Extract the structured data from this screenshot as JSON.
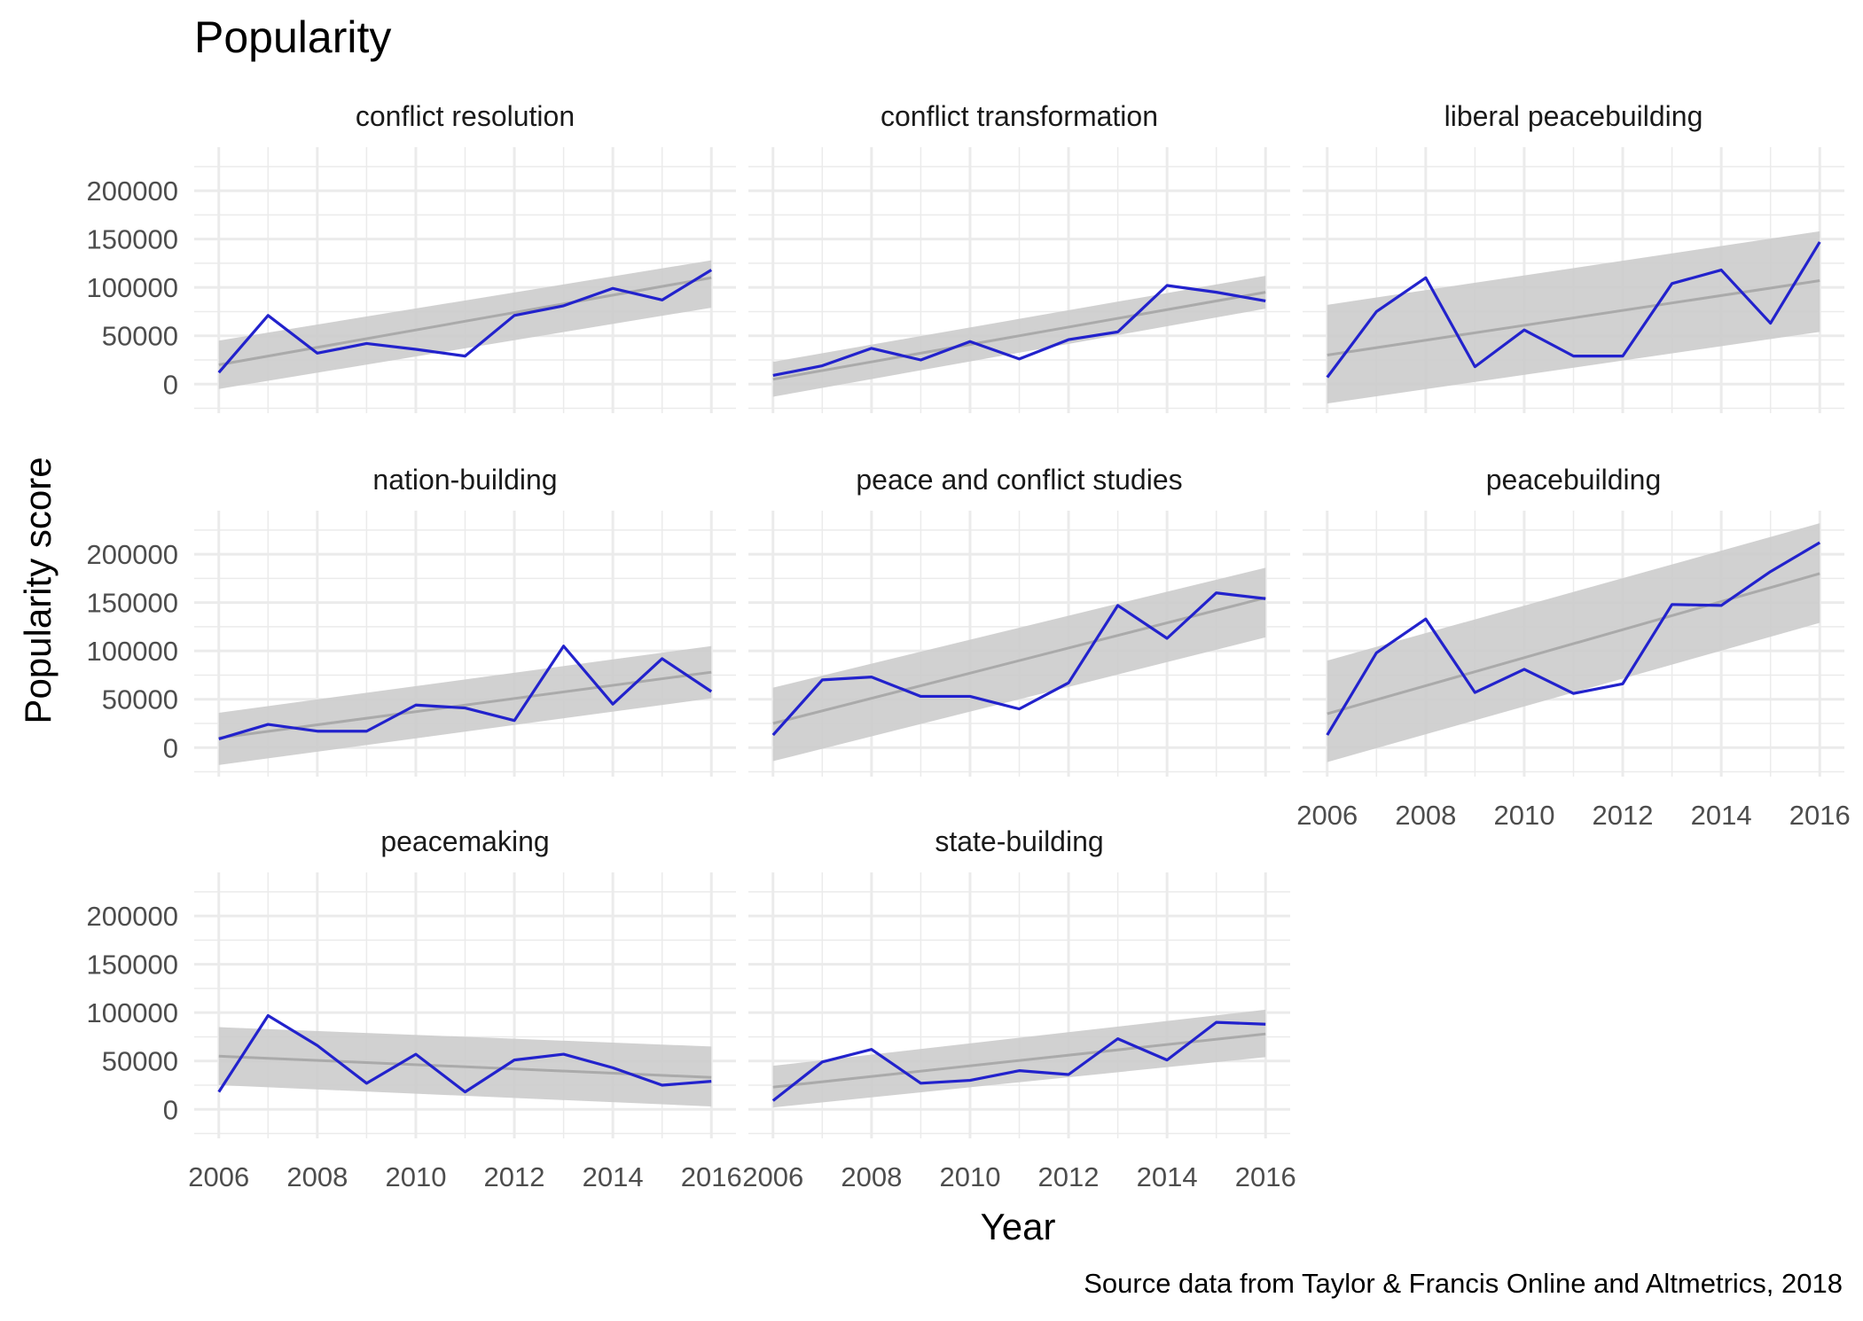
{
  "chart_data": {
    "type": "line",
    "title": "Popularity",
    "xlabel": "Year",
    "ylabel": "Popularity score",
    "caption": "Source data from Taylor & Francis Online and Altmetrics, 2018",
    "x": [
      2006,
      2007,
      2008,
      2009,
      2010,
      2011,
      2012,
      2013,
      2014,
      2015,
      2016
    ],
    "xlim": [
      2005.5,
      2016.5
    ],
    "ylim": [
      -30000,
      245000
    ],
    "x_breaks": [
      2006,
      2008,
      2010,
      2012,
      2014,
      2016
    ],
    "y_breaks": [
      0,
      50000,
      100000,
      150000,
      200000
    ],
    "grid": true,
    "layout": {
      "rows": 3,
      "cols": 3
    },
    "colors": {
      "line": "#2222cc",
      "fit": "#aaaaaa",
      "band": "#cccccc",
      "grid": "#ebebeb"
    },
    "panels": [
      {
        "name": "conflict resolution",
        "values": [
          12000,
          71000,
          32000,
          42000,
          36000,
          29000,
          71000,
          81000,
          99000,
          87000,
          118000
        ],
        "fit": [
          20000,
          110000
        ],
        "band_lower": [
          -5000,
          79000
        ],
        "band_upper": [
          45000,
          128000
        ]
      },
      {
        "name": "conflict transformation",
        "values": [
          9000,
          19000,
          37000,
          25000,
          44000,
          26000,
          46000,
          54000,
          102000,
          95000,
          86000
        ],
        "fit": [
          5000,
          95000
        ],
        "band_lower": [
          -13000,
          78000
        ],
        "band_upper": [
          23000,
          112000
        ]
      },
      {
        "name": "liberal peacebuilding",
        "values": [
          7000,
          75000,
          110000,
          18000,
          56000,
          29000,
          29000,
          104000,
          118000,
          63000,
          147000
        ],
        "fit": [
          30000,
          107000
        ],
        "band_lower": [
          -20000,
          54000
        ],
        "band_upper": [
          82000,
          158000
        ]
      },
      {
        "name": "nation-building",
        "values": [
          9000,
          24000,
          17000,
          17000,
          44000,
          41000,
          28000,
          105000,
          45000,
          92000,
          58000
        ],
        "fit": [
          10000,
          78000
        ],
        "band_lower": [
          -18000,
          51000
        ],
        "band_upper": [
          36000,
          105000
        ]
      },
      {
        "name": "peace and conflict studies",
        "values": [
          13000,
          70000,
          73000,
          53000,
          53000,
          40000,
          67000,
          147000,
          113000,
          160000,
          154000
        ],
        "fit": [
          25000,
          155000
        ],
        "band_lower": [
          -14000,
          114000
        ],
        "band_upper": [
          62000,
          186000
        ]
      },
      {
        "name": "peacebuilding",
        "values": [
          13000,
          98000,
          133000,
          57000,
          81000,
          56000,
          66000,
          148000,
          147000,
          182000,
          212000
        ],
        "fit": [
          35000,
          180000
        ],
        "band_lower": [
          -15000,
          129000
        ],
        "band_upper": [
          90000,
          232000
        ]
      },
      {
        "name": "peacemaking",
        "values": [
          18000,
          97000,
          66000,
          27000,
          57000,
          18000,
          51000,
          57000,
          43000,
          25000,
          29000
        ],
        "fit": [
          55000,
          33000
        ],
        "band_lower": [
          25000,
          3000
        ],
        "band_upper": [
          85000,
          65000
        ]
      },
      {
        "name": "state-building",
        "values": [
          9000,
          49000,
          62000,
          27000,
          30000,
          40000,
          36000,
          73000,
          51000,
          90000,
          88000
        ],
        "fit": [
          23000,
          78000
        ],
        "band_lower": [
          2000,
          54000
        ],
        "band_upper": [
          45000,
          103000
        ]
      }
    ]
  }
}
